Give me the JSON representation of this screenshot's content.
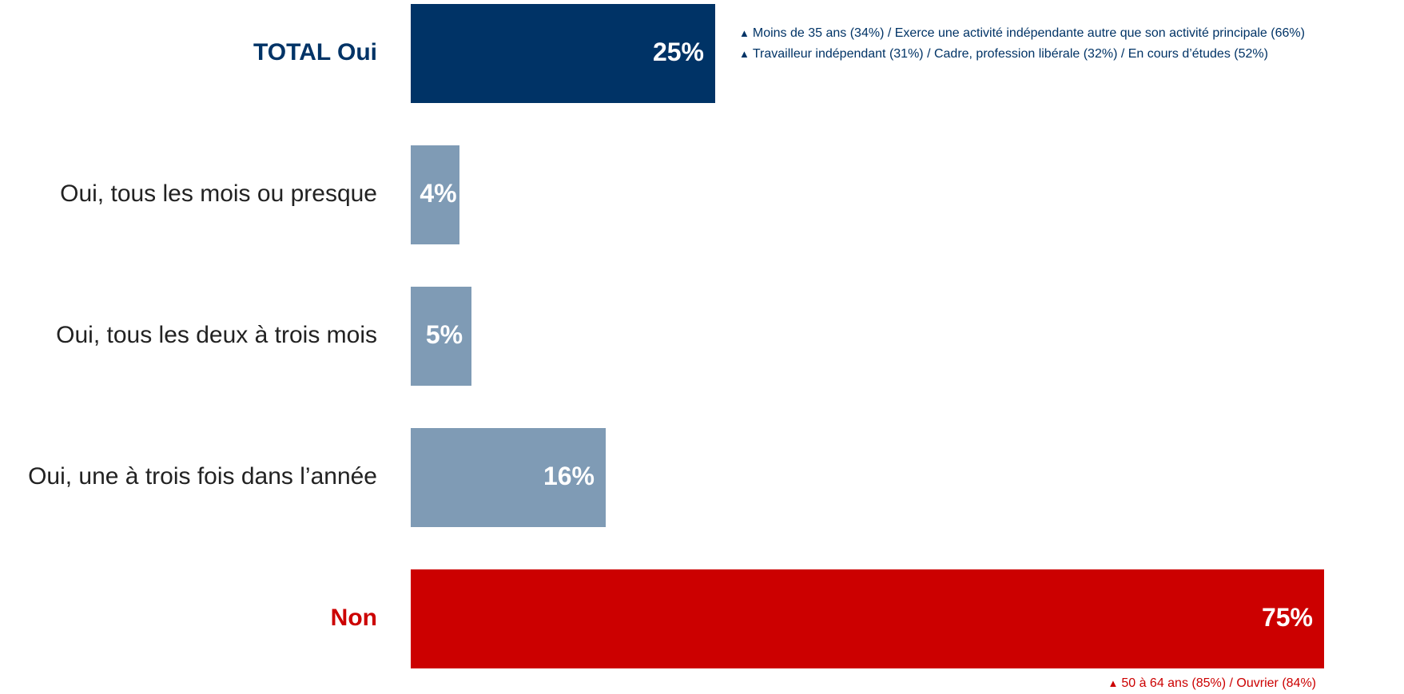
{
  "chart_data": {
    "type": "bar",
    "orientation": "horizontal",
    "xlim": [
      0,
      75
    ],
    "categories": [
      "TOTAL Oui",
      "Oui, tous les mois ou presque",
      "Oui, tous les deux à trois mois",
      "Oui, une à trois fois dans l’année",
      "Non"
    ],
    "values": [
      25,
      4,
      5,
      16,
      75
    ],
    "value_labels": [
      "25%",
      "4%",
      "5%",
      "16%",
      "75%"
    ],
    "bar_colors": [
      "#003366",
      "#7f9bb5",
      "#7f9bb5",
      "#7f9bb5",
      "#cc0000"
    ],
    "label_colors": [
      "#003366",
      "#222222",
      "#222222",
      "#222222",
      "#cc0000"
    ],
    "label_bold": [
      true,
      false,
      false,
      false,
      true
    ],
    "annotations": [
      {
        "bar_index": 0,
        "color": "#003366",
        "lines": [
          "Moins de 35 ans (34%) / Exerce une activité indépendante autre que son activité principale (66%)",
          "Travailleur indépendant (31%) / Cadre, profession libérale (32%) / En cours d’études (52%)"
        ]
      },
      {
        "bar_index": 4,
        "color": "#cc0000",
        "lines": [
          "50 à 64 ans (85%) / Ouvrier (84%)"
        ]
      }
    ],
    "marker_glyph": "▲",
    "grid": false,
    "legend": "none"
  }
}
